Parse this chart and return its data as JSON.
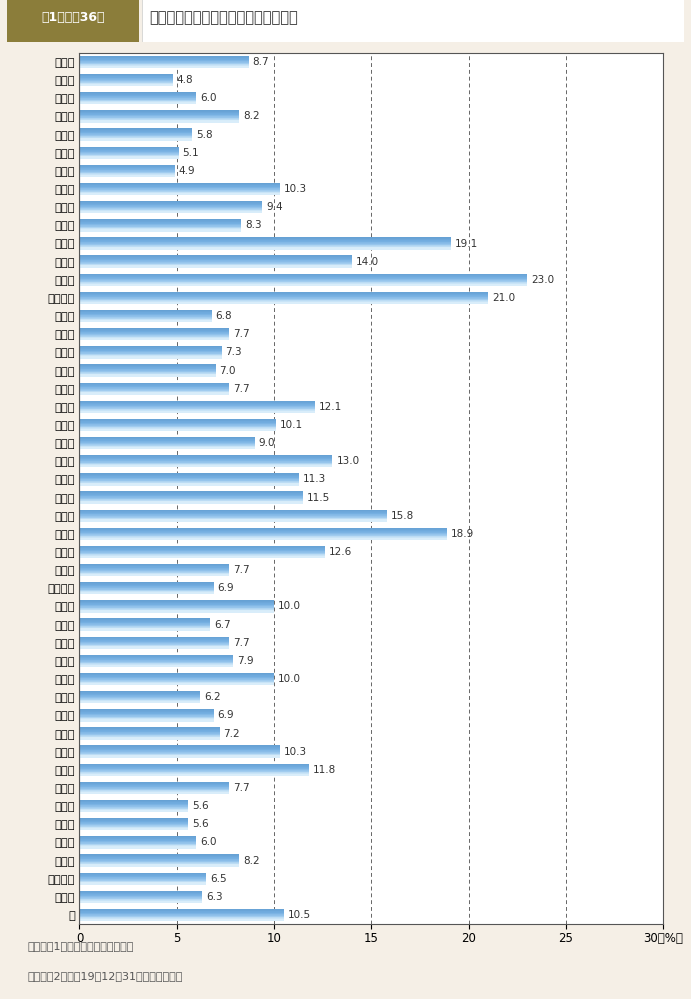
{
  "title_box_label": "第1－特－36図",
  "title_text": "市区町村議会議員に占める女性の割合",
  "categories": [
    "北海道",
    "青森県",
    "岩手県",
    "宮城県",
    "秋田県",
    "山形県",
    "福島県",
    "茨城県",
    "栃木県",
    "群馬県",
    "埼玉県",
    "千葉県",
    "東京都",
    "神奈川県",
    "新潟県",
    "富山県",
    "石川県",
    "福井県",
    "山梨県",
    "長野県",
    "岐阜県",
    "静岡県",
    "愛知県",
    "三重県",
    "滋賀県",
    "京都府",
    "大阪府",
    "兵庫県",
    "奈良県",
    "和歌山県",
    "鳥取県",
    "島根県",
    "岡山県",
    "広島県",
    "山口県",
    "徳島県",
    "香川県",
    "愛媛県",
    "高知県",
    "福岡県",
    "佐賀県",
    "長崎県",
    "熊本県",
    "大分県",
    "宮崎県",
    "鹿児島県",
    "沖縄県",
    "計"
  ],
  "values": [
    8.7,
    4.8,
    6.0,
    8.2,
    5.8,
    5.1,
    4.9,
    10.3,
    9.4,
    8.3,
    19.1,
    14.0,
    23.0,
    21.0,
    6.8,
    7.7,
    7.3,
    7.0,
    7.7,
    12.1,
    10.1,
    9.0,
    13.0,
    11.3,
    11.5,
    15.8,
    18.9,
    12.6,
    7.7,
    6.9,
    10.0,
    6.7,
    7.7,
    7.9,
    10.0,
    6.2,
    6.9,
    7.2,
    10.3,
    11.8,
    7.7,
    5.6,
    5.6,
    6.0,
    8.2,
    6.5,
    6.3,
    10.5
  ],
  "value_labels": [
    "8.7",
    "4.8",
    "6.0",
    "8.2",
    "5.8",
    "5.1",
    "4.9",
    "10.3",
    "9.4",
    "8.3",
    "19.1",
    "14.0",
    "23.0",
    "21.0",
    "6.8",
    "7.7",
    "7.3",
    "7.0",
    "7.7",
    "12.1",
    "10.1",
    "9.0",
    "13.0",
    "11.3",
    "11.5",
    "15.8",
    "18.9",
    "12.6",
    "7.7",
    "6.9",
    "10.0",
    "6.7",
    "7.7",
    "7.9",
    "10.0",
    "6.2",
    "6.9",
    "7.2",
    "10.3",
    "11.8",
    "7.7",
    "5.6",
    "5.6",
    "6.0",
    "8.2",
    "6.5",
    "6.3",
    "10.5"
  ],
  "xlim": [
    0,
    30
  ],
  "xticks": [
    0,
    5,
    10,
    15,
    20,
    25,
    30
  ],
  "grid_color": "#666666",
  "bg_color": "#f5efe6",
  "note_line1": "（備考）1．総務省資料より作成。",
  "note_line2": "　　　　2．平成19年12月31日現在の数字。",
  "title_box_bg": "#8b7d3a",
  "title_box_text_color": "#ffffff",
  "bar_colors": [
    "#a8d8f0",
    "#7cc4e8",
    "#5ab0de",
    "#4aa8d8",
    "#3898c8"
  ],
  "bar_edge_color": "#3898c8"
}
